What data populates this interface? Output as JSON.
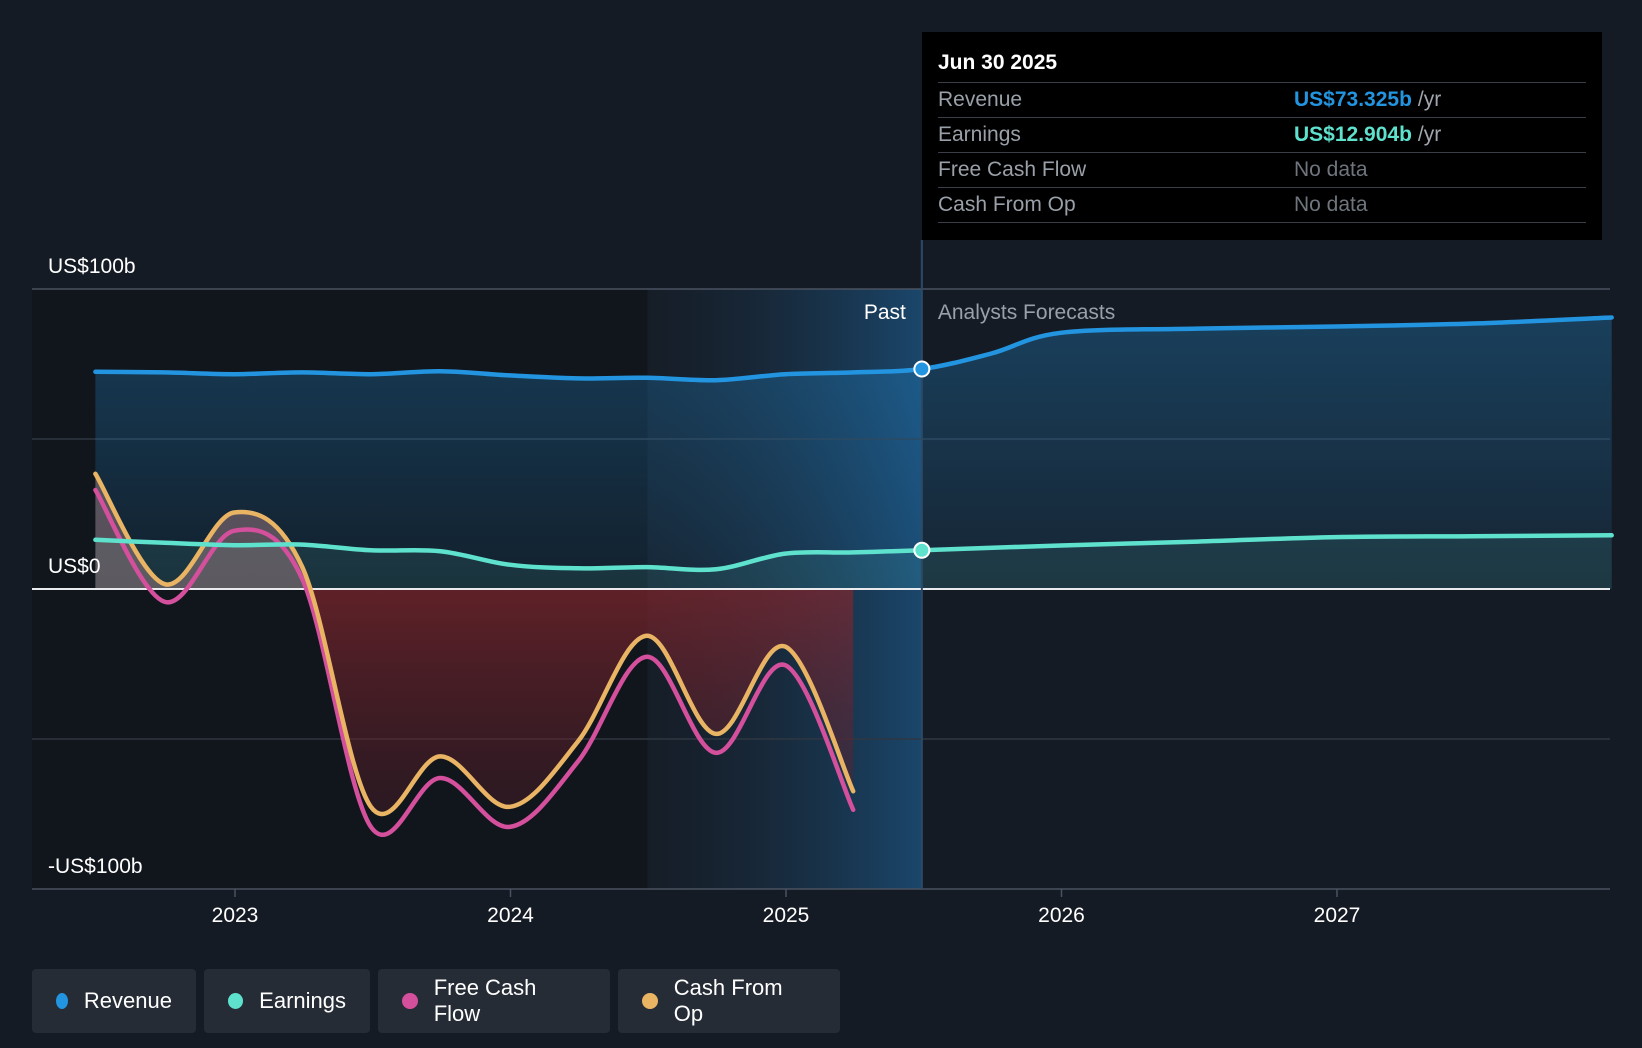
{
  "chart_data": {
    "type": "area",
    "x_ticks": [
      "2023",
      "2024",
      "2025",
      "2026",
      "2027"
    ],
    "y_ticks": [
      "US$100b",
      "US$0",
      "-US$100b"
    ],
    "ylim": [
      -100,
      100
    ],
    "divider_labels": {
      "past": "Past",
      "forecast": "Analysts Forecasts"
    },
    "series": [
      {
        "name": "Revenue",
        "color": "#2394df",
        "points": [
          [
            "2022-06-30",
            72.4
          ],
          [
            "2022-09-30",
            72.2
          ],
          [
            "2022-12-31",
            71.6
          ],
          [
            "2023-03-31",
            72.2
          ],
          [
            "2023-06-30",
            71.6
          ],
          [
            "2023-09-30",
            72.6
          ],
          [
            "2023-12-31",
            71.2
          ],
          [
            "2024-03-31",
            70.2
          ],
          [
            "2024-06-30",
            70.4
          ],
          [
            "2024-09-30",
            69.6
          ],
          [
            "2024-12-31",
            71.6
          ],
          [
            "2025-03-31",
            72.2
          ],
          [
            "2025-06-30",
            73.325
          ],
          [
            "2025-09-30",
            78.5
          ],
          [
            "2025-12-31",
            85.4
          ],
          [
            "2026-06-30",
            86.8
          ],
          [
            "2026-12-31",
            87.5
          ],
          [
            "2027-06-30",
            88.5
          ],
          [
            "2027-12-31",
            90.5
          ]
        ]
      },
      {
        "name": "Earnings",
        "color": "#5ee1cd",
        "points": [
          [
            "2022-06-30",
            16.4
          ],
          [
            "2022-09-30",
            15.4
          ],
          [
            "2022-12-31",
            14.6
          ],
          [
            "2023-03-31",
            14.8
          ],
          [
            "2023-06-30",
            12.9
          ],
          [
            "2023-09-30",
            12.6
          ],
          [
            "2023-12-31",
            8.1
          ],
          [
            "2024-03-31",
            6.9
          ],
          [
            "2024-06-30",
            7.3
          ],
          [
            "2024-09-30",
            6.6
          ],
          [
            "2024-12-31",
            11.8
          ],
          [
            "2025-03-31",
            12.2
          ],
          [
            "2025-06-30",
            12.904
          ],
          [
            "2025-12-31",
            14.5
          ],
          [
            "2026-06-30",
            15.8
          ],
          [
            "2026-12-31",
            17.3
          ],
          [
            "2027-06-30",
            17.6
          ],
          [
            "2027-12-31",
            17.9
          ]
        ]
      },
      {
        "name": "Free Cash Flow",
        "color": "#d44f9c",
        "points": [
          [
            "2022-06-30",
            33
          ],
          [
            "2022-09-30",
            -4.3
          ],
          [
            "2022-12-31",
            19.4
          ],
          [
            "2023-03-31",
            3.4
          ],
          [
            "2023-06-30",
            -79.3
          ],
          [
            "2023-09-30",
            -63
          ],
          [
            "2023-12-31",
            -79.3
          ],
          [
            "2024-03-31",
            -57.4
          ],
          [
            "2024-06-30",
            -22.6
          ],
          [
            "2024-09-30",
            -54.6
          ],
          [
            "2024-12-31",
            -25.4
          ],
          [
            "2025-03-31",
            -73.6
          ]
        ]
      },
      {
        "name": "Cash From Op",
        "color": "#e9b463",
        "points": [
          [
            "2022-06-30",
            38.4
          ],
          [
            "2022-09-30",
            1.6
          ],
          [
            "2022-12-31",
            25.5
          ],
          [
            "2023-03-31",
            7.4
          ],
          [
            "2023-06-30",
            -72.6
          ],
          [
            "2023-09-30",
            -55.8
          ],
          [
            "2023-12-31",
            -72.6
          ],
          [
            "2024-03-31",
            -50.7
          ],
          [
            "2024-06-30",
            -15.6
          ],
          [
            "2024-09-30",
            -48.3
          ],
          [
            "2024-12-31",
            -19.2
          ],
          [
            "2025-03-31",
            -67.4
          ]
        ]
      }
    ]
  },
  "tooltip": {
    "date": "Jun 30 2025",
    "rows": [
      {
        "label": "Revenue",
        "value": "US$73.325b",
        "unit": "/yr",
        "color": "#2394df"
      },
      {
        "label": "Earnings",
        "value": "US$12.904b",
        "unit": "/yr",
        "color": "#5ee1cd"
      },
      {
        "label": "Free Cash Flow",
        "value": "No data"
      },
      {
        "label": "Cash From Op",
        "value": "No data"
      }
    ]
  },
  "legend": [
    {
      "label": "Revenue",
      "color": "#2394df"
    },
    {
      "label": "Earnings",
      "color": "#5ee1cd"
    },
    {
      "label": "Free Cash Flow",
      "color": "#d44f9c"
    },
    {
      "label": "Cash From Op",
      "color": "#e9b463"
    }
  ]
}
